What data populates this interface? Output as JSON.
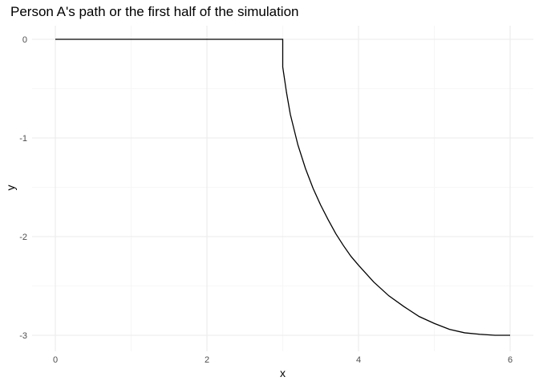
{
  "chart_data": {
    "type": "line",
    "title": "Person A's path or the first half of the simulation",
    "xlabel": "x",
    "ylabel": "y",
    "xlim": [
      0,
      6
    ],
    "ylim": [
      -3,
      0
    ],
    "x_ticks": [
      0,
      2,
      4,
      6
    ],
    "y_ticks": [
      0,
      -1,
      -2,
      -3
    ],
    "x_tick_labels": [
      "0",
      "2",
      "4",
      "6"
    ],
    "y_tick_labels": [
      "0",
      "-1",
      "-2",
      "-3"
    ],
    "grid": true,
    "legend": "none",
    "line_color": "#000000",
    "series": [
      {
        "x": [
          0,
          3,
          3.0,
          3.05,
          3.1,
          3.2,
          3.3,
          3.4,
          3.5,
          3.6,
          3.7,
          3.8,
          3.9,
          4.0,
          4.2,
          4.4,
          4.6,
          4.8,
          5.0,
          5.2,
          5.4,
          5.6,
          5.8,
          6.0
        ],
        "y": [
          0,
          0,
          -0.28,
          -0.54,
          -0.76,
          -1.07,
          -1.31,
          -1.51,
          -1.68,
          -1.83,
          -1.97,
          -2.09,
          -2.2,
          -2.29,
          -2.46,
          -2.6,
          -2.71,
          -2.81,
          -2.88,
          -2.94,
          -2.975,
          -2.99,
          -3.0,
          -3.0
        ]
      }
    ]
  }
}
